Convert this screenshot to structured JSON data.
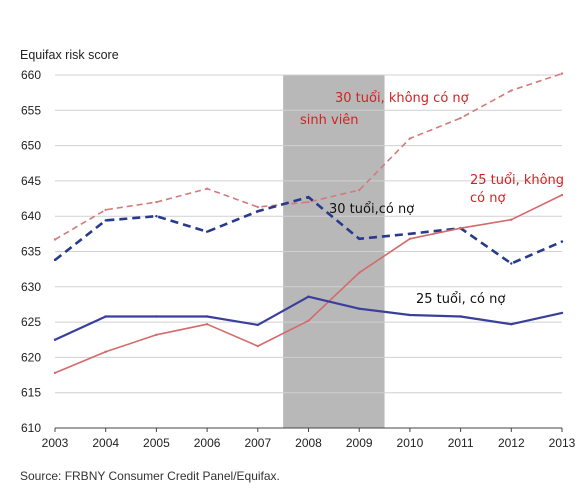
{
  "chart_data": {
    "type": "line",
    "ylabel": "Equifax risk score",
    "source": "Source: FRBNY Consumer Credit Panel/Equifax.",
    "x": [
      2003,
      2004,
      2005,
      2006,
      2007,
      2008,
      2009,
      2010,
      2011,
      2012,
      2013
    ],
    "x_tick_labels": [
      "2003",
      "2004",
      "2005",
      "2006",
      "2007",
      "2008",
      "2009",
      "2010",
      "2011",
      "2012",
      "2013"
    ],
    "ylim": [
      610,
      660
    ],
    "y_ticks": [
      610,
      615,
      620,
      625,
      630,
      635,
      640,
      645,
      650,
      655,
      660
    ],
    "grid": "horizontal",
    "shaded_period": [
      2007.5,
      2009.5
    ],
    "series": [
      {
        "name": "30 tuổi, không có nợ sinh viên",
        "style": "dashed",
        "color": "#d47a7a",
        "values": [
          636.7,
          640.9,
          642.0,
          643.9,
          641.3,
          642.0,
          643.7,
          651.0,
          653.9,
          657.8,
          660.2
        ]
      },
      {
        "name": "30 tuổi,có nợ",
        "style": "dashed",
        "color": "#283a8c",
        "values": [
          633.8,
          639.4,
          640.0,
          637.8,
          640.7,
          642.7,
          636.8,
          637.5,
          638.3,
          633.3,
          636.4
        ]
      },
      {
        "name": "25 tuổi, không có nợ",
        "style": "solid",
        "color": "#d46a6a",
        "values": [
          617.8,
          620.8,
          623.2,
          624.7,
          621.6,
          625.2,
          632.0,
          636.8,
          638.3,
          639.5,
          643.0
        ]
      },
      {
        "name": "25 tuổi, có nợ",
        "style": "solid",
        "color": "#3a3f9c",
        "values": [
          622.5,
          625.8,
          625.8,
          625.8,
          624.6,
          628.6,
          626.9,
          626.0,
          625.8,
          624.7,
          626.3
        ]
      }
    ],
    "annotations": [
      {
        "lines": [
          "30 tuổi, không có nợ"
        ],
        "color": "red"
      },
      {
        "lines": [
          "sinh viên"
        ],
        "color": "red"
      },
      {
        "lines": [
          "25 tuổi, không",
          "có nợ"
        ],
        "color": "red"
      },
      {
        "lines": [
          "30 tuổi,có nợ"
        ],
        "color": "dark"
      },
      {
        "lines": [
          "25 tuổi, có nợ"
        ],
        "color": "dark"
      }
    ]
  }
}
